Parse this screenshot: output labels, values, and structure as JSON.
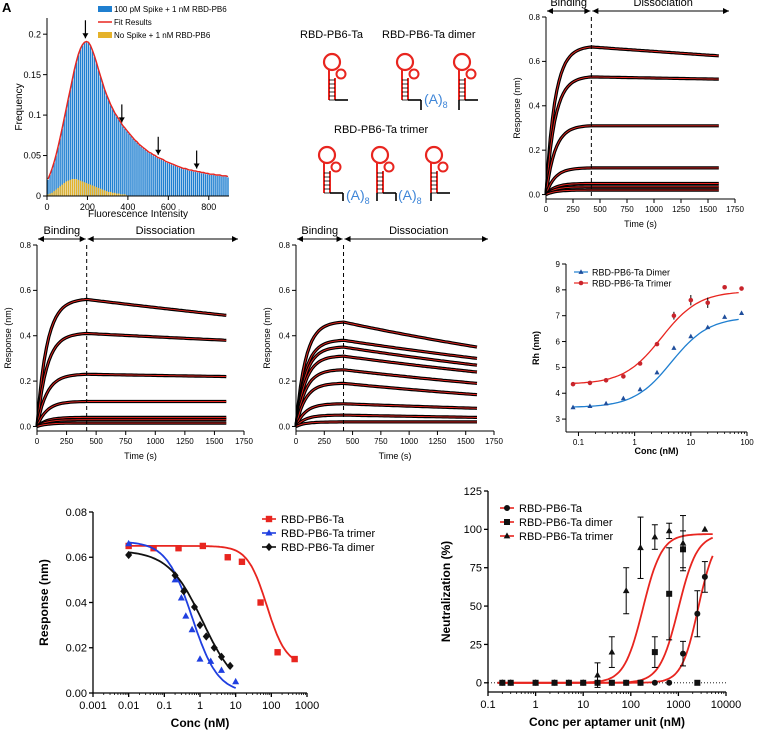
{
  "panel_label": "A",
  "diagram": {
    "labels": [
      "RBD-PB6-Ta",
      "RBD-PB6-Ta dimer",
      "RBD-PB6-Ta trimer"
    ],
    "linker": "(A)",
    "linker_sub": "8"
  },
  "colors": {
    "red": "#e8251f",
    "blue": "#1f7fd0",
    "gold": "#e5b22a",
    "black": "#000000",
    "aptamer": "#e8251f",
    "linker": "#3f86d8"
  },
  "chart_data": [
    {
      "id": "histogram",
      "type": "bar",
      "title": "",
      "xlabel": "Fluorescence Intensity",
      "ylabel": "Frequency",
      "xlim": [
        0,
        900
      ],
      "ylim": [
        0,
        0.22
      ],
      "xticks": [
        0,
        200,
        400,
        600,
        800
      ],
      "yticks": [
        0,
        0.05,
        0.1,
        0.15,
        0.2
      ],
      "ytick_labels": [
        "0",
        "0.05",
        "0.1",
        "0.15",
        "0.2"
      ],
      "legend": [
        "100 pM Spike + 1 nM RBD-PB6",
        "Fit Results",
        "No Spike + 1 nM RBD-PB6"
      ],
      "peak_arrows_x": [
        190,
        370,
        550,
        740
      ],
      "series": [
        {
          "name": "100 pM Spike + 1 nM RBD-PB6",
          "bin_width": 10,
          "x": [
            5,
            15,
            25,
            35,
            45,
            55,
            65,
            75,
            85,
            95,
            105,
            115,
            125,
            135,
            145,
            155,
            165,
            175,
            185,
            195,
            205,
            215,
            225,
            235,
            245,
            255,
            265,
            275,
            285,
            295,
            305,
            315,
            325,
            335,
            345,
            355,
            365,
            375,
            385,
            395,
            405,
            415,
            425,
            435,
            445,
            455,
            465,
            475,
            485,
            495,
            505,
            515,
            525,
            535,
            545,
            555,
            565,
            575,
            585,
            595,
            605,
            615,
            625,
            635,
            645,
            655,
            665,
            675,
            685,
            695,
            705,
            715,
            725,
            735,
            745,
            755,
            765,
            775,
            785,
            795,
            805,
            815,
            825,
            835,
            845,
            855,
            865,
            875,
            885,
            895
          ],
          "values": [
            0.02,
            0.026,
            0.033,
            0.041,
            0.05,
            0.06,
            0.071,
            0.083,
            0.095,
            0.107,
            0.119,
            0.131,
            0.143,
            0.155,
            0.165,
            0.174,
            0.181,
            0.186,
            0.189,
            0.19,
            0.189,
            0.185,
            0.179,
            0.172,
            0.164,
            0.155,
            0.147,
            0.139,
            0.131,
            0.124,
            0.118,
            0.112,
            0.107,
            0.102,
            0.098,
            0.094,
            0.09,
            0.086,
            0.083,
            0.08,
            0.077,
            0.074,
            0.071,
            0.068,
            0.066,
            0.063,
            0.061,
            0.059,
            0.057,
            0.055,
            0.053,
            0.052,
            0.05,
            0.049,
            0.047,
            0.046,
            0.045,
            0.044,
            0.042,
            0.041,
            0.04,
            0.039,
            0.038,
            0.037,
            0.036,
            0.035,
            0.034,
            0.033,
            0.033,
            0.032,
            0.031,
            0.031,
            0.03,
            0.03,
            0.029,
            0.029,
            0.028,
            0.028,
            0.027,
            0.027,
            0.026,
            0.026,
            0.026,
            0.025,
            0.025,
            0.025,
            0.024,
            0.024,
            0.024,
            0.023
          ]
        },
        {
          "name": "No Spike + 1 nM RBD-PB6",
          "bin_width": 10,
          "x": [
            5,
            15,
            25,
            35,
            45,
            55,
            65,
            75,
            85,
            95,
            105,
            115,
            125,
            135,
            145,
            155,
            165,
            175,
            185,
            195,
            205,
            215,
            225,
            235,
            245,
            255,
            265,
            275,
            285,
            295,
            305,
            315,
            325,
            335,
            345,
            355,
            365,
            375,
            385,
            395
          ],
          "values": [
            0.002,
            0.003,
            0.004,
            0.006,
            0.008,
            0.01,
            0.012,
            0.014,
            0.016,
            0.018,
            0.019,
            0.02,
            0.021,
            0.021,
            0.021,
            0.02,
            0.019,
            0.018,
            0.017,
            0.016,
            0.015,
            0.014,
            0.013,
            0.012,
            0.011,
            0.01,
            0.009,
            0.008,
            0.007,
            0.006,
            0.005,
            0.005,
            0.004,
            0.004,
            0.003,
            0.003,
            0.002,
            0.002,
            0.002,
            0.001
          ]
        }
      ]
    },
    {
      "id": "bli1",
      "type": "line",
      "xlabel": "Time (s)",
      "ylabel": "Response (nm)",
      "xlim": [
        0,
        1750
      ],
      "ylim": [
        -0.02,
        0.8
      ],
      "xticks": [
        0,
        250,
        500,
        750,
        1000,
        1250,
        1500,
        1750
      ],
      "yticks": [
        0,
        0.2,
        0.4,
        0.6,
        0.8
      ],
      "ytick_labels": [
        "0.0",
        "0.2",
        "0.4",
        "0.6",
        "0.8"
      ],
      "binding_label": "Binding",
      "dissociation_label": "Dissociation",
      "switch_time": 420,
      "end_time": 1600,
      "series": [
        {
          "plateau": 0.665,
          "end": 0.625
        },
        {
          "plateau": 0.53,
          "end": 0.52
        },
        {
          "plateau": 0.31,
          "end": 0.31
        },
        {
          "plateau": 0.12,
          "end": 0.12
        },
        {
          "plateau": 0.05,
          "end": 0.05
        },
        {
          "plateau": 0.035,
          "end": 0.035
        },
        {
          "plateau": 0.02,
          "end": 0.02
        }
      ]
    },
    {
      "id": "bli2",
      "type": "line",
      "xlabel": "Time (s)",
      "ylabel": "Response (nm)",
      "xlim": [
        0,
        1750
      ],
      "ylim": [
        -0.02,
        0.8
      ],
      "xticks": [
        0,
        250,
        500,
        750,
        1000,
        1250,
        1500,
        1750
      ],
      "yticks": [
        0,
        0.2,
        0.4,
        0.6,
        0.8
      ],
      "ytick_labels": [
        "0.0",
        "0.2",
        "0.4",
        "0.6",
        "0.8"
      ],
      "binding_label": "Binding",
      "dissociation_label": "Dissociation",
      "switch_time": 420,
      "end_time": 1600,
      "series": [
        {
          "plateau": 0.56,
          "end": 0.49
        },
        {
          "plateau": 0.41,
          "end": 0.38
        },
        {
          "plateau": 0.23,
          "end": 0.22
        },
        {
          "plateau": 0.11,
          "end": 0.11
        },
        {
          "plateau": 0.04,
          "end": 0.04
        },
        {
          "plateau": 0.03,
          "end": 0.03
        },
        {
          "plateau": 0.015,
          "end": 0.015
        }
      ]
    },
    {
      "id": "bli3",
      "type": "line",
      "xlabel": "Time (s)",
      "ylabel": "Response (nm)",
      "xlim": [
        0,
        1750
      ],
      "ylim": [
        -0.02,
        0.8
      ],
      "xticks": [
        0,
        250,
        500,
        750,
        1000,
        1250,
        1500,
        1750
      ],
      "yticks": [
        0,
        0.2,
        0.4,
        0.6,
        0.8
      ],
      "ytick_labels": [
        "0.0",
        "0.2",
        "0.4",
        "0.6",
        "0.8"
      ],
      "binding_label": "Binding",
      "dissociation_label": "Dissociation",
      "switch_time": 420,
      "end_time": 1600,
      "series": [
        {
          "plateau": 0.46,
          "end": 0.35
        },
        {
          "plateau": 0.38,
          "end": 0.3
        },
        {
          "plateau": 0.35,
          "end": 0.27
        },
        {
          "plateau": 0.31,
          "end": 0.24
        },
        {
          "plateau": 0.25,
          "end": 0.19
        },
        {
          "plateau": 0.19,
          "end": 0.14
        },
        {
          "plateau": 0.1,
          "end": 0.08
        },
        {
          "plateau": 0.05,
          "end": 0.04
        },
        {
          "plateau": 0.02,
          "end": 0.02
        }
      ]
    },
    {
      "id": "rh",
      "type": "scatter",
      "xlabel": "Conc (nM)",
      "ylabel": "Rh (nm)",
      "xscale": "log",
      "xlim": [
        0.06,
        100
      ],
      "ylim": [
        2.5,
        9
      ],
      "xticks": [
        0.1,
        1,
        10,
        100
      ],
      "xtick_labels": [
        "0.1",
        "1",
        "10",
        "100"
      ],
      "yticks": [
        3,
        4,
        5,
        6,
        7,
        8,
        9
      ],
      "series": [
        {
          "name": "RBD-PB6-Ta Dimer",
          "marker": "triangle",
          "color": "#1f4e9c",
          "x": [
            0.08,
            0.16,
            0.31,
            0.63,
            1.25,
            2.5,
            5,
            10,
            20,
            40,
            80
          ],
          "y": [
            3.45,
            3.5,
            3.6,
            3.8,
            4.15,
            4.8,
            5.75,
            6.2,
            6.55,
            6.95,
            7.1
          ],
          "fit": {
            "bottom": 3.45,
            "top": 6.95,
            "ec50": 4.5,
            "hill": 1.3
          }
        },
        {
          "name": "RBD-PB6-Ta Trimer",
          "marker": "circle",
          "color": "#c8242b",
          "x": [
            0.08,
            0.16,
            0.31,
            0.63,
            1.25,
            2.5,
            5,
            10,
            20,
            40,
            80
          ],
          "y": [
            4.35,
            4.4,
            4.5,
            4.65,
            5.15,
            5.9,
            7.0,
            7.6,
            7.5,
            8.1,
            8.05
          ],
          "err": [
            0,
            0,
            0,
            0,
            0,
            0,
            0.15,
            0.2,
            0.2,
            0,
            0
          ],
          "fit": {
            "bottom": 4.35,
            "top": 7.95,
            "ec50": 3.0,
            "hill": 1.3
          }
        }
      ]
    },
    {
      "id": "competition",
      "type": "scatter",
      "xlabel": "Conc (nM)",
      "ylabel": "Response (nm)",
      "xscale": "log",
      "xlim": [
        0.001,
        1000
      ],
      "ylim": [
        0,
        0.08
      ],
      "xticks": [
        0.001,
        0.01,
        0.1,
        1,
        10,
        100,
        1000
      ],
      "xtick_labels": [
        "0.001",
        "0.01",
        "0.1",
        "1",
        "10",
        "100",
        "1000"
      ],
      "yticks": [
        0,
        0.02,
        0.04,
        0.06,
        0.08
      ],
      "ytick_labels": [
        "0.00",
        "0.02",
        "0.04",
        "0.06",
        "0.08"
      ],
      "legend_names": [
        "RBD-PB6-Ta",
        "RBD-PB6-Ta  trimer",
        "RBD-PB6-Ta  dimer"
      ],
      "series": [
        {
          "name": "RBD-PB6-Ta",
          "marker": "square",
          "color": "#e8251f",
          "x": [
            0.01,
            0.05,
            0.25,
            1.2,
            6,
            15,
            50,
            150,
            450
          ],
          "y": [
            0.065,
            0.064,
            0.064,
            0.065,
            0.06,
            0.058,
            0.04,
            0.018,
            0.015
          ],
          "fit": {
            "bottom": 0.012,
            "top": 0.065,
            "ic50": 75,
            "hill": 1.6
          }
        },
        {
          "name": "RBD-PB6-Ta trimer",
          "marker": "triangle",
          "color": "#1f3fe0",
          "x": [
            0.01,
            0.2,
            0.3,
            0.4,
            0.6,
            1,
            2,
            4,
            10
          ],
          "y": [
            0.066,
            0.05,
            0.042,
            0.034,
            0.028,
            0.015,
            0.014,
            0.01,
            0.005
          ],
          "fit": {
            "bottom": 0.0,
            "top": 0.067,
            "ic50": 0.6,
            "hill": 1.2
          }
        },
        {
          "name": "RBD-PB6-Ta dimer",
          "marker": "diamond",
          "color": "#111111",
          "x": [
            0.01,
            0.2,
            0.35,
            0.7,
            1,
            1.5,
            2.5,
            4,
            7
          ],
          "y": [
            0.061,
            0.052,
            0.045,
            0.038,
            0.03,
            0.025,
            0.02,
            0.016,
            0.012
          ],
          "fit": {
            "bottom": 0.0,
            "top": 0.063,
            "ic50": 1.2,
            "hill": 0.9
          }
        }
      ]
    },
    {
      "id": "neutralization",
      "type": "scatter",
      "xlabel": "Conc per aptamer unit (nM)",
      "ylabel": "Neutralization (%)",
      "xscale": "log",
      "xlim": [
        0.1,
        10000
      ],
      "ylim": [
        -6,
        125
      ],
      "xticks": [
        0.1,
        1,
        10,
        100,
        1000,
        10000
      ],
      "xtick_labels": [
        "0.1",
        "1",
        "10",
        "100",
        "1000",
        "10000"
      ],
      "yticks": [
        0,
        25,
        50,
        75,
        100,
        125
      ],
      "series": [
        {
          "name": "RBD-PB6-Ta",
          "marker": "circle",
          "color": "#111111",
          "x": [
            0.2,
            0.3,
            1,
            2.5,
            5,
            10,
            20,
            40,
            80,
            160,
            320,
            640,
            1250,
            2500,
            3600
          ],
          "y": [
            0,
            0,
            0,
            0,
            0,
            0,
            0,
            0,
            0,
            0,
            0,
            0,
            19,
            45,
            69
          ],
          "err": [
            0,
            0,
            0,
            0,
            0,
            0,
            0,
            0,
            0,
            0,
            0,
            0,
            8,
            15,
            10
          ]
        },
        {
          "name": "RBD-PB6-Ta dimer",
          "marker": "square",
          "color": "#111111",
          "x": [
            0.2,
            0.3,
            1,
            2.5,
            5,
            10,
            20,
            40,
            80,
            160,
            320,
            640,
            1250,
            2500
          ],
          "y": [
            0,
            0,
            0,
            0,
            0,
            0,
            0,
            0,
            0,
            0,
            20,
            58,
            87,
            0
          ],
          "err": [
            0,
            0,
            0,
            0,
            0,
            0,
            0,
            0,
            0,
            0,
            10,
            30,
            12,
            0
          ]
        },
        {
          "name": "RBD-PB6-Ta trimer",
          "marker": "triangle",
          "color": "#111111",
          "x": [
            0.2,
            0.3,
            1,
            2.5,
            5,
            10,
            20,
            40,
            80,
            160,
            320,
            640,
            1250,
            3600
          ],
          "y": [
            0,
            0,
            0,
            0,
            0,
            0,
            5,
            20,
            60,
            88,
            95,
            99,
            91,
            100
          ],
          "err": [
            0,
            0,
            0,
            0,
            0,
            0,
            8,
            10,
            15,
            20,
            8,
            5,
            18,
            0
          ]
        }
      ],
      "fits": [
        {
          "name": "RBD-PB6-Ta trimer",
          "bottom": 0,
          "top": 97,
          "ec50": 180,
          "hill": 2.2
        },
        {
          "name": "RBD-PB6-Ta dimer",
          "bottom": 0,
          "top": 97,
          "ec50": 1000,
          "hill": 2.2
        },
        {
          "name": "RBD-PB6-Ta",
          "bottom": 0,
          "top": 97,
          "ec50": 2600,
          "hill": 2.5
        }
      ]
    }
  ]
}
